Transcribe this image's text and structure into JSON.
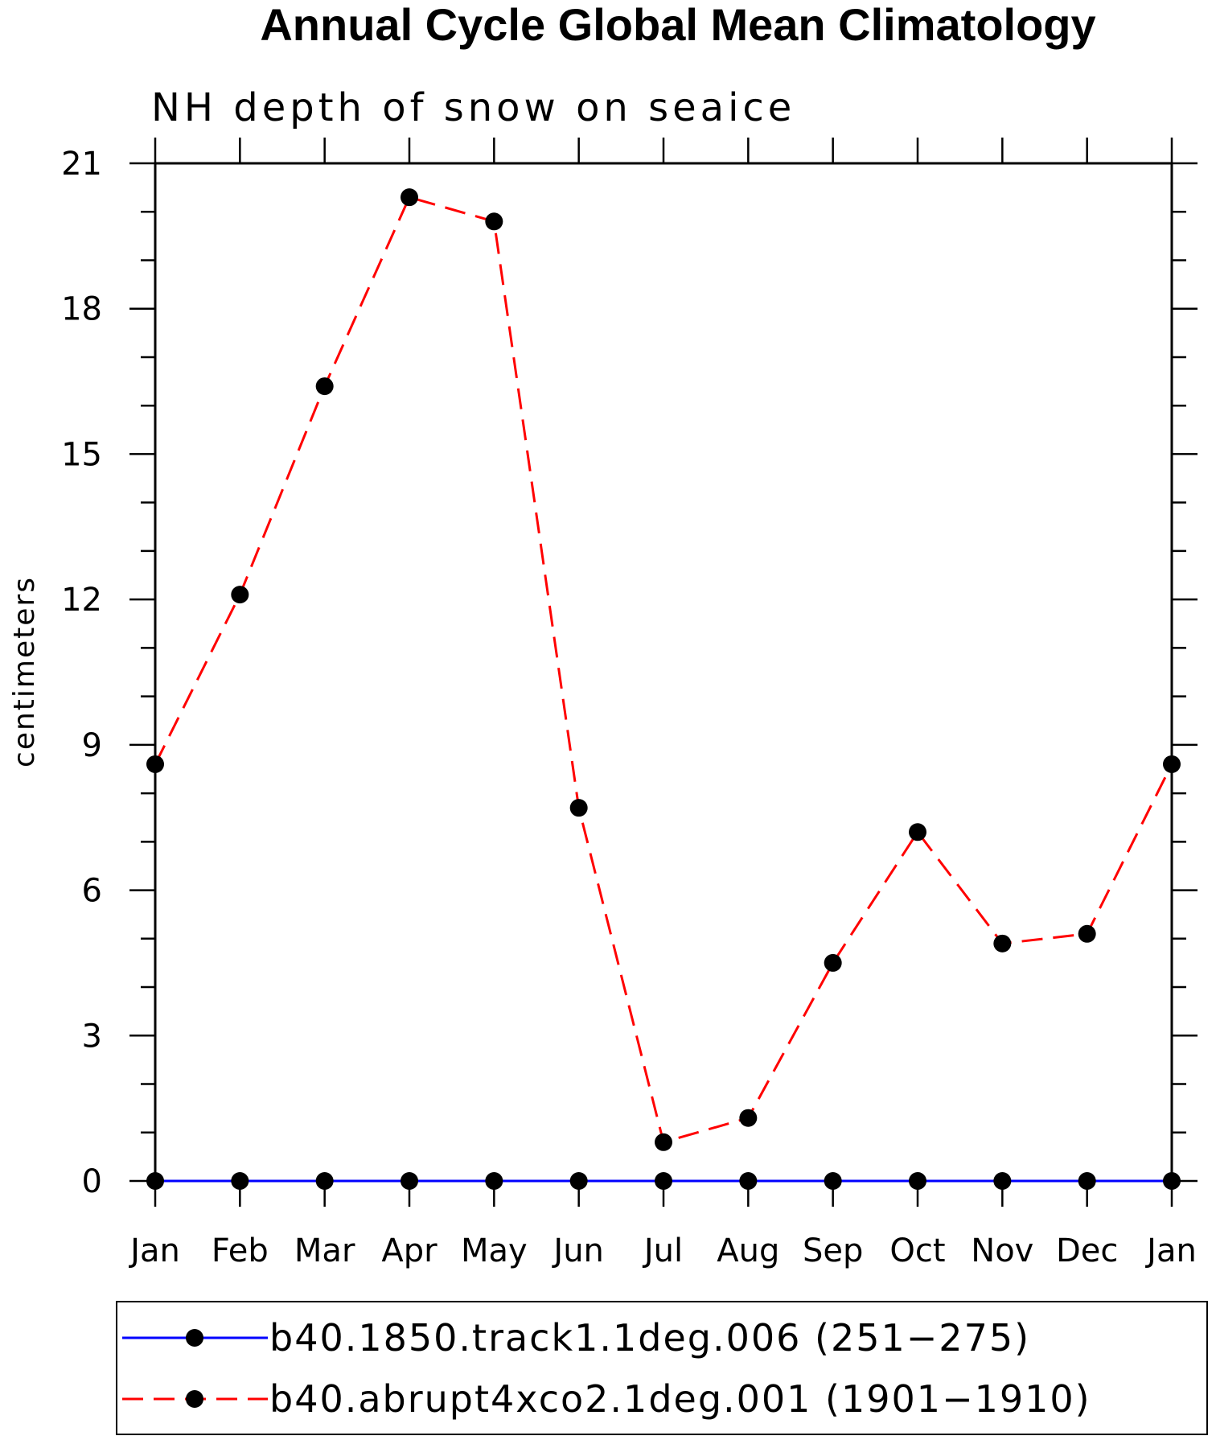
{
  "chart_data": {
    "type": "line",
    "title": "Annual Cycle Global Mean Climatology",
    "subtitle": "NH depth of snow on seaice",
    "ylabel": "centimeters",
    "xlabel": "",
    "categories": [
      "Jan",
      "Feb",
      "Mar",
      "Apr",
      "May",
      "Jun",
      "Jul",
      "Aug",
      "Sep",
      "Oct",
      "Nov",
      "Dec",
      "Jan"
    ],
    "ylim": [
      0,
      21
    ],
    "yticks": [
      0,
      3,
      6,
      9,
      12,
      15,
      18,
      21
    ],
    "ytick_labels": [
      "0",
      "3",
      "6",
      "9",
      "12",
      "15",
      "18",
      "21"
    ],
    "grid": false,
    "legend_position": "bottom",
    "series": [
      {
        "name": "b40.1850.track1.1deg.006 (251−275)",
        "color": "#0000ff",
        "line_style": "solid",
        "marker": "filled-circle",
        "marker_color": "#000000",
        "values": [
          0,
          0,
          0,
          0,
          0,
          0,
          0,
          0,
          0,
          0,
          0,
          0,
          0
        ]
      },
      {
        "name": "b40.abrupt4xco2.1deg.001 (1901−1910)",
        "color": "#ff0000",
        "line_style": "dashed",
        "marker": "filled-circle",
        "marker_color": "#000000",
        "values": [
          8.6,
          12.1,
          16.4,
          20.3,
          19.8,
          7.7,
          0.8,
          1.3,
          4.5,
          7.2,
          4.9,
          5.1,
          8.6
        ]
      }
    ]
  }
}
